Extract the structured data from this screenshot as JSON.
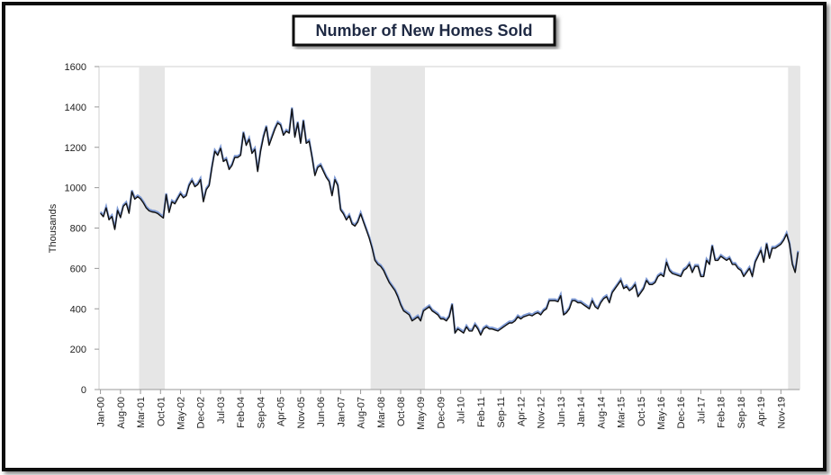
{
  "chart_data": {
    "type": "line",
    "title": "Number of New Homes Sold",
    "y_label": "Thousands",
    "categories": [
      "Jan-00",
      null,
      null,
      null,
      null,
      null,
      null,
      "Aug-00",
      null,
      null,
      null,
      null,
      null,
      null,
      "Mar-01",
      null,
      null,
      null,
      null,
      null,
      null,
      "Oct-01",
      null,
      null,
      null,
      null,
      null,
      null,
      "May-02",
      null,
      null,
      null,
      null,
      null,
      null,
      "Dec-02",
      null,
      null,
      null,
      null,
      null,
      null,
      "Jul-03",
      null,
      null,
      null,
      null,
      null,
      null,
      "Feb-04",
      null,
      null,
      null,
      null,
      null,
      null,
      "Sep-04",
      null,
      null,
      null,
      null,
      null,
      null,
      "Apr-05",
      null,
      null,
      null,
      null,
      null,
      null,
      "Nov-05",
      null,
      null,
      null,
      null,
      null,
      null,
      "Jun-06",
      null,
      null,
      null,
      null,
      null,
      null,
      "Jan-07",
      null,
      null,
      null,
      null,
      null,
      null,
      "Aug-07",
      null,
      null,
      null,
      null,
      null,
      null,
      "Mar-08",
      null,
      null,
      null,
      null,
      null,
      null,
      "Oct-08",
      null,
      null,
      null,
      null,
      null,
      null,
      "May-09",
      null,
      null,
      null,
      null,
      null,
      null,
      "Dec-09",
      null,
      null,
      null,
      null,
      null,
      null,
      "Jul-10",
      null,
      null,
      null,
      null,
      null,
      null,
      "Feb-11",
      null,
      null,
      null,
      null,
      null,
      null,
      "Sep-11",
      null,
      null,
      null,
      null,
      null,
      null,
      "Apr-12",
      null,
      null,
      null,
      null,
      null,
      null,
      "Nov-12",
      null,
      null,
      null,
      null,
      null,
      null,
      "Jun-13",
      null,
      null,
      null,
      null,
      null,
      null,
      "Jan-14",
      null,
      null,
      null,
      null,
      null,
      null,
      "Aug-14",
      null,
      null,
      null,
      null,
      null,
      null,
      "Mar-15",
      null,
      null,
      null,
      null,
      null,
      null,
      "Oct-15",
      null,
      null,
      null,
      null,
      null,
      null,
      "May-16",
      null,
      null,
      null,
      null,
      null,
      null,
      "Dec-16",
      null,
      null,
      null,
      null,
      null,
      null,
      "Jul-17",
      null,
      null,
      null,
      null,
      null,
      null,
      "Feb-18",
      null,
      null,
      null,
      null,
      null,
      null,
      "Sep-18",
      null,
      null,
      null,
      null,
      null,
      null,
      "Apr-19",
      null,
      null,
      null,
      null,
      null,
      null,
      "Nov-19",
      null,
      null,
      null,
      null,
      null,
      null
    ],
    "series": [
      {
        "color": "#111111",
        "highlight_color": "#7f9bd6",
        "values": [
          873,
          856,
          900,
          841,
          857,
          793,
          887,
          852,
          908,
          922,
          873,
          980,
          943,
          955,
          945,
          925,
          900,
          885,
          880,
          878,
          872,
          860,
          850,
          965,
          877,
          930,
          920,
          945,
          970,
          950,
          960,
          1010,
          1035,
          1005,
          1015,
          1040,
          930,
          990,
          1010,
          1100,
          1180,
          1160,
          1195,
          1130,
          1140,
          1090,
          1110,
          1150,
          1150,
          1160,
          1270,
          1210,
          1240,
          1170,
          1190,
          1080,
          1180,
          1250,
          1300,
          1210,
          1250,
          1290,
          1320,
          1310,
          1260,
          1280,
          1270,
          1390,
          1250,
          1320,
          1220,
          1330,
          1220,
          1230,
          1150,
          1060,
          1100,
          1110,
          1080,
          1050,
          1030,
          960,
          1040,
          1010,
          890,
          870,
          840,
          860,
          820,
          810,
          830,
          870,
          830,
          790,
          750,
          700,
          640,
          620,
          610,
          590,
          560,
          530,
          510,
          490,
          460,
          420,
          390,
          380,
          370,
          340,
          350,
          360,
          340,
          390,
          400,
          410,
          390,
          380,
          370,
          350,
          350,
          340,
          360,
          420,
          280,
          300,
          290,
          280,
          310,
          290,
          290,
          320,
          300,
          270,
          300,
          310,
          300,
          300,
          295,
          290,
          300,
          310,
          320,
          330,
          330,
          340,
          360,
          350,
          360,
          365,
          370,
          365,
          375,
          380,
          370,
          390,
          400,
          440,
          440,
          440,
          435,
          465,
          370,
          380,
          400,
          440,
          440,
          430,
          430,
          420,
          410,
          400,
          440,
          410,
          400,
          430,
          450,
          460,
          430,
          480,
          500,
          520,
          540,
          500,
          510,
          490,
          500,
          520,
          460,
          480,
          500,
          540,
          520,
          520,
          530,
          560,
          570,
          560,
          630,
          590,
          575,
          570,
          565,
          560,
          590,
          600,
          620,
          580,
          610,
          610,
          560,
          560,
          640,
          620,
          710,
          640,
          640,
          660,
          650,
          640,
          650,
          620,
          620,
          600,
          590,
          560,
          580,
          600,
          560,
          630,
          660,
          690,
          630,
          720,
          650,
          700,
          700,
          710,
          720,
          740,
          770,
          720,
          620,
          580,
          680
        ]
      }
    ],
    "shaded_periods": [
      [
        14,
        22
      ],
      [
        95,
        113
      ],
      [
        241,
        244
      ]
    ],
    "shade_color": "#e6e6e6",
    "ylim": [
      0,
      1600
    ],
    "yticks": [
      0,
      200,
      400,
      600,
      800,
      1000,
      1200,
      1400,
      1600
    ],
    "grid": false
  }
}
